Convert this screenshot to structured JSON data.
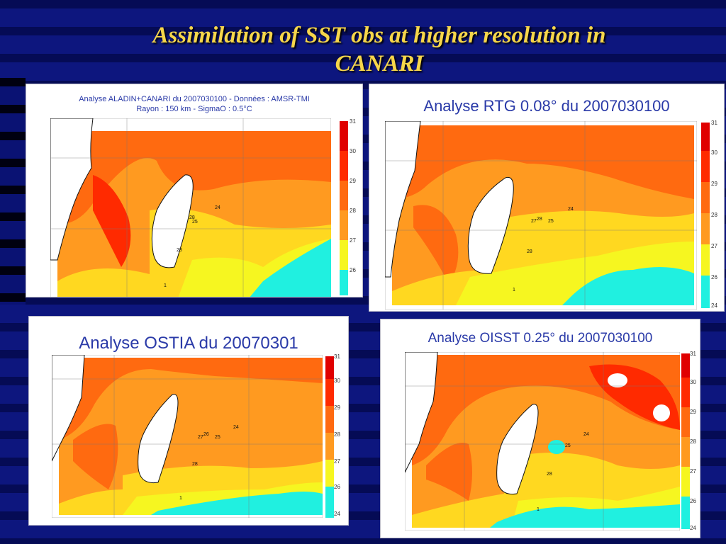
{
  "slide": {
    "title_line1": "Assimilation of SST obs at higher resolution in",
    "title_line2": "CANARI"
  },
  "panels": [
    {
      "title_line1": "Analyse ALADIN+CANARI du 2007030100 - Données : AMSR-TMI",
      "title_line2": "Rayon : 150 km - SigmaO : 0.5°C",
      "colorbar_ticks": [
        "31",
        "30",
        "29",
        "28",
        "27",
        "26"
      ],
      "contour_labels": [
        "28",
        "24",
        "25",
        "28",
        "1"
      ]
    },
    {
      "title_line1": "Analyse RTG 0.08° du 2007030100",
      "colorbar_ticks": [
        "31",
        "30",
        "29",
        "28",
        "27",
        "26",
        "24"
      ],
      "contour_labels": [
        "28",
        "27",
        "24",
        "25",
        "28",
        "1"
      ]
    },
    {
      "title_line1": "Analyse OSTIA du 20070301",
      "colorbar_ticks": [
        "31",
        "30",
        "29",
        "28",
        "27",
        "26",
        "24"
      ],
      "contour_labels": [
        "26",
        "27",
        "24",
        "25",
        "28",
        "1"
      ]
    },
    {
      "title_line1": "Analyse OISST 0.25° du 2007030100",
      "colorbar_ticks": [
        "31",
        "30",
        "29",
        "28",
        "27",
        "26",
        "24"
      ],
      "contour_labels": [
        "24",
        "25",
        "28",
        "1"
      ]
    }
  ],
  "colors": {
    "sst_31": "#e00000",
    "sst_30": "#ff2a00",
    "sst_29": "#ff6a10",
    "sst_28": "#ff9a20",
    "sst_27": "#ffd820",
    "sst_26": "#f6f620",
    "sst_24": "#20f0e0"
  }
}
